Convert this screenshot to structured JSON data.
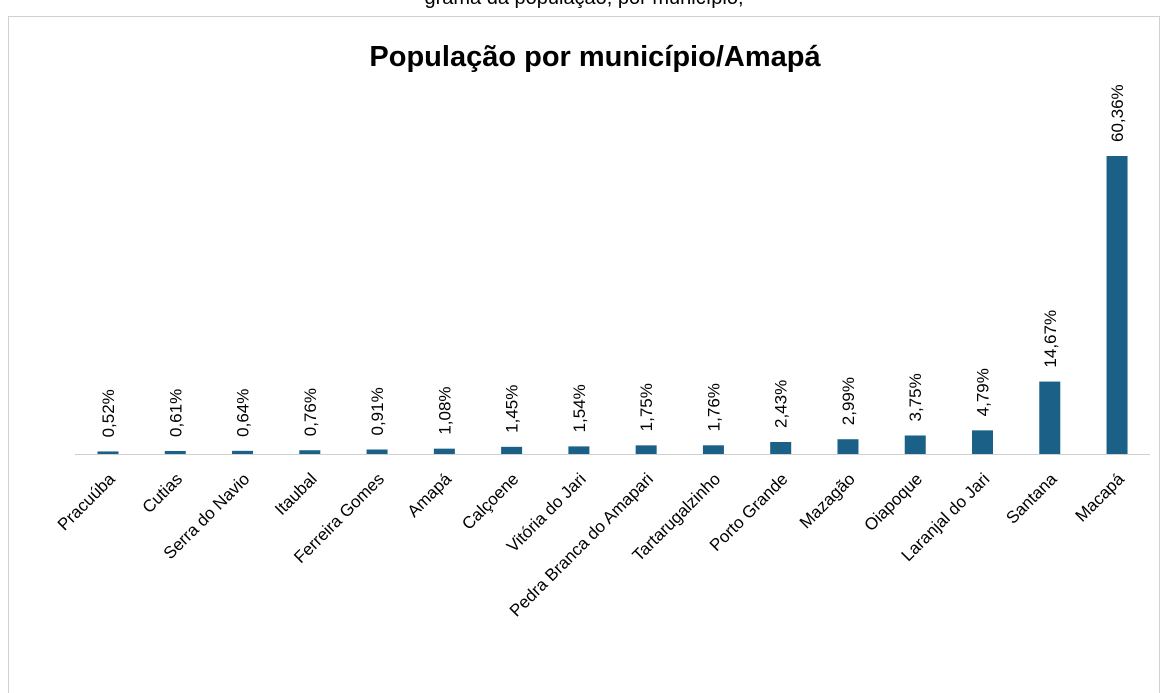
{
  "caption": "grama da população, por município, ",
  "chart_data": {
    "type": "bar",
    "title": "População por município/Amapá",
    "categories": [
      "Pracuúba",
      "Cutias",
      "Serra do Navio",
      "Itaubal",
      "Ferreira Gomes",
      "Amapá",
      "Calçoene",
      "Vitória do Jari",
      "Pedra Branca do Amapari",
      "Tartarugalzinho",
      "Porto Grande",
      "Mazagão",
      "Oiapoque",
      "Laranjal do Jari",
      "Santana",
      "Macapá"
    ],
    "values": [
      0.52,
      0.61,
      0.64,
      0.76,
      0.91,
      1.08,
      1.45,
      1.54,
      1.75,
      1.76,
      2.43,
      2.99,
      3.75,
      4.79,
      14.67,
      60.36
    ],
    "value_labels": [
      "0,52%",
      "0,61%",
      "0,64%",
      "0,76%",
      "0,91%",
      "1,08%",
      "1,45%",
      "1,54%",
      "1,75%",
      "1,76%",
      "2,43%",
      "2,99%",
      "3,75%",
      "4,79%",
      "14,67%",
      "60,36%"
    ],
    "color": "#1b6086"
  }
}
